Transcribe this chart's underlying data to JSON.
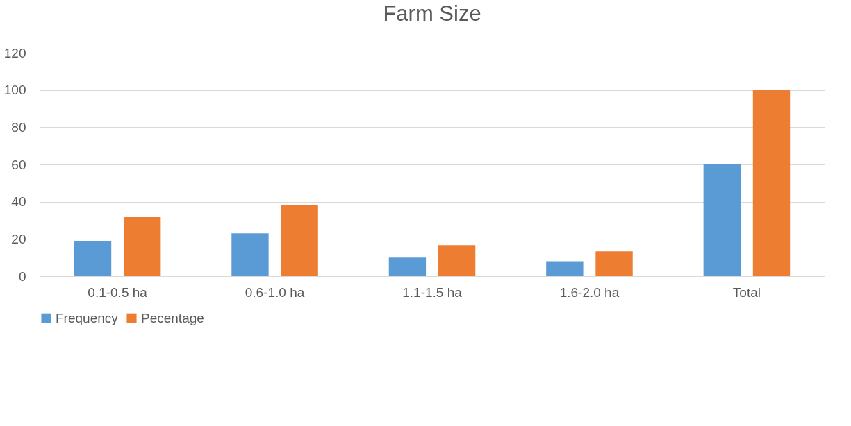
{
  "chart_data": {
    "type": "bar",
    "title": "Farm Size",
    "categories": [
      "0.1-0.5 ha",
      "0.6-1.0 ha",
      "1.1-1.5 ha",
      "1.6-2.0 ha",
      "Total"
    ],
    "series": [
      {
        "name": "Frequency",
        "color": "#5b9bd5",
        "values": [
          19,
          23,
          10,
          8,
          60
        ]
      },
      {
        "name": "Pecentage",
        "color": "#ed7d31",
        "values": [
          31.7,
          38.3,
          16.7,
          13.3,
          100
        ]
      }
    ],
    "ylim": [
      0,
      120
    ],
    "yticks": [
      0,
      20,
      40,
      60,
      80,
      100,
      120
    ],
    "grid": "y",
    "legend": "bottom"
  }
}
